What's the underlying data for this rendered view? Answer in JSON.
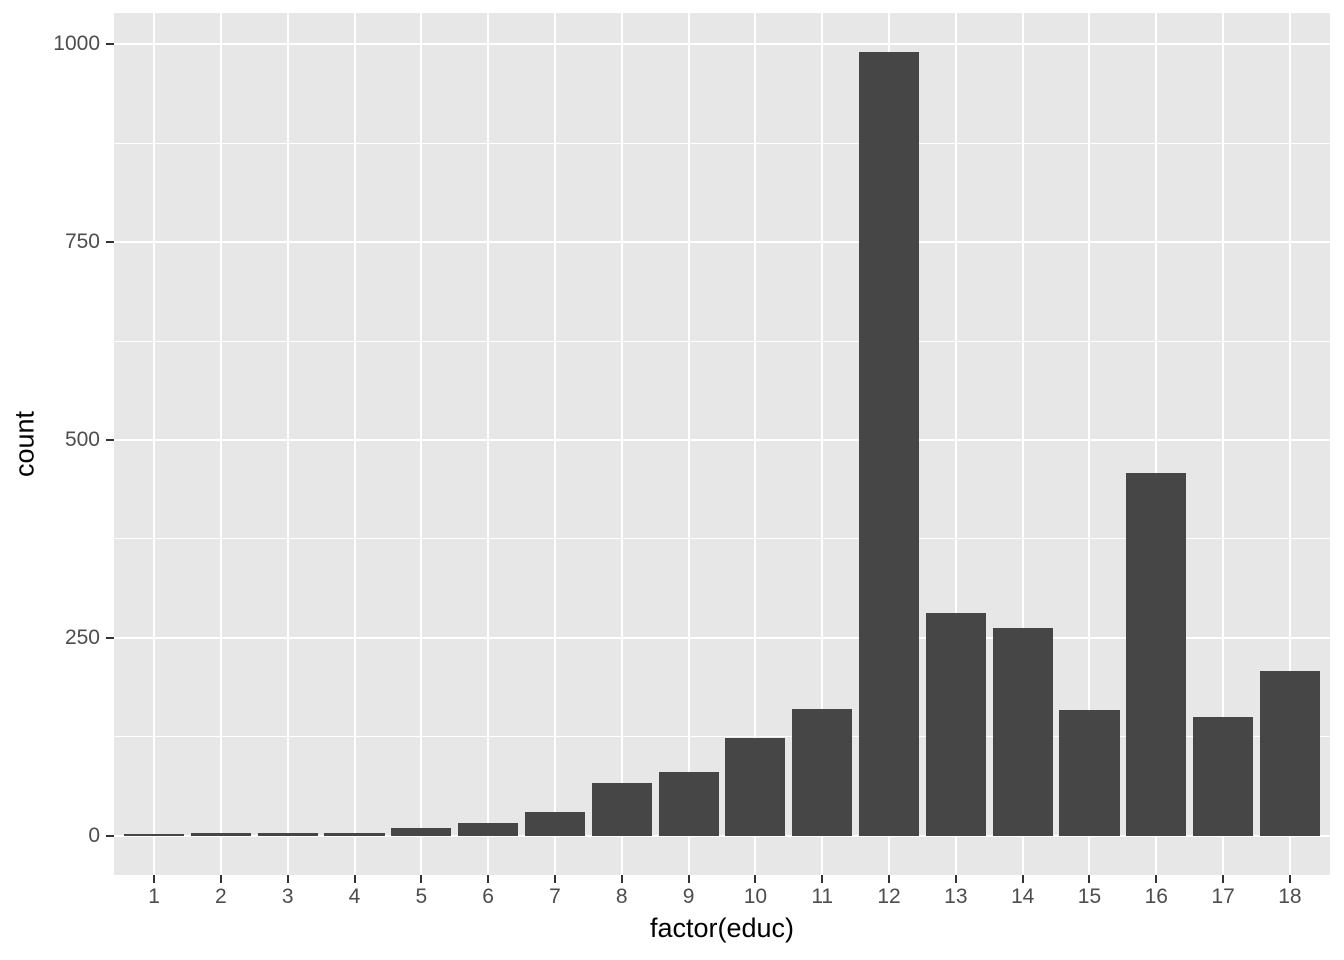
{
  "chart_data": {
    "type": "bar",
    "title": "",
    "xlabel": "factor(educ)",
    "ylabel": "count",
    "categories": [
      "1",
      "2",
      "3",
      "4",
      "5",
      "6",
      "7",
      "8",
      "9",
      "10",
      "11",
      "12",
      "13",
      "14",
      "15",
      "16",
      "17",
      "18"
    ],
    "values": [
      2,
      4,
      4,
      4,
      10,
      16,
      30,
      67,
      81,
      124,
      160,
      990,
      281,
      263,
      159,
      458,
      150,
      208
    ],
    "y_major_ticks": [
      0,
      250,
      500,
      750,
      1000
    ],
    "y_minor_gridlines": [
      125,
      375,
      625,
      875
    ],
    "ylim": [
      -49.5,
      1039.5
    ],
    "x_expansion": 0.6,
    "bar_rel_width": 0.9,
    "grid": "on",
    "legend": "none",
    "colors": {
      "bar_fill": "#464646",
      "panel_background": "#E7E7E7",
      "gridline": "#FFFFFF",
      "tick_label": "#4D4D4D",
      "axis_title": "#000000",
      "tick_mark": "#333333",
      "figure_background": "#FFFFFF"
    }
  }
}
